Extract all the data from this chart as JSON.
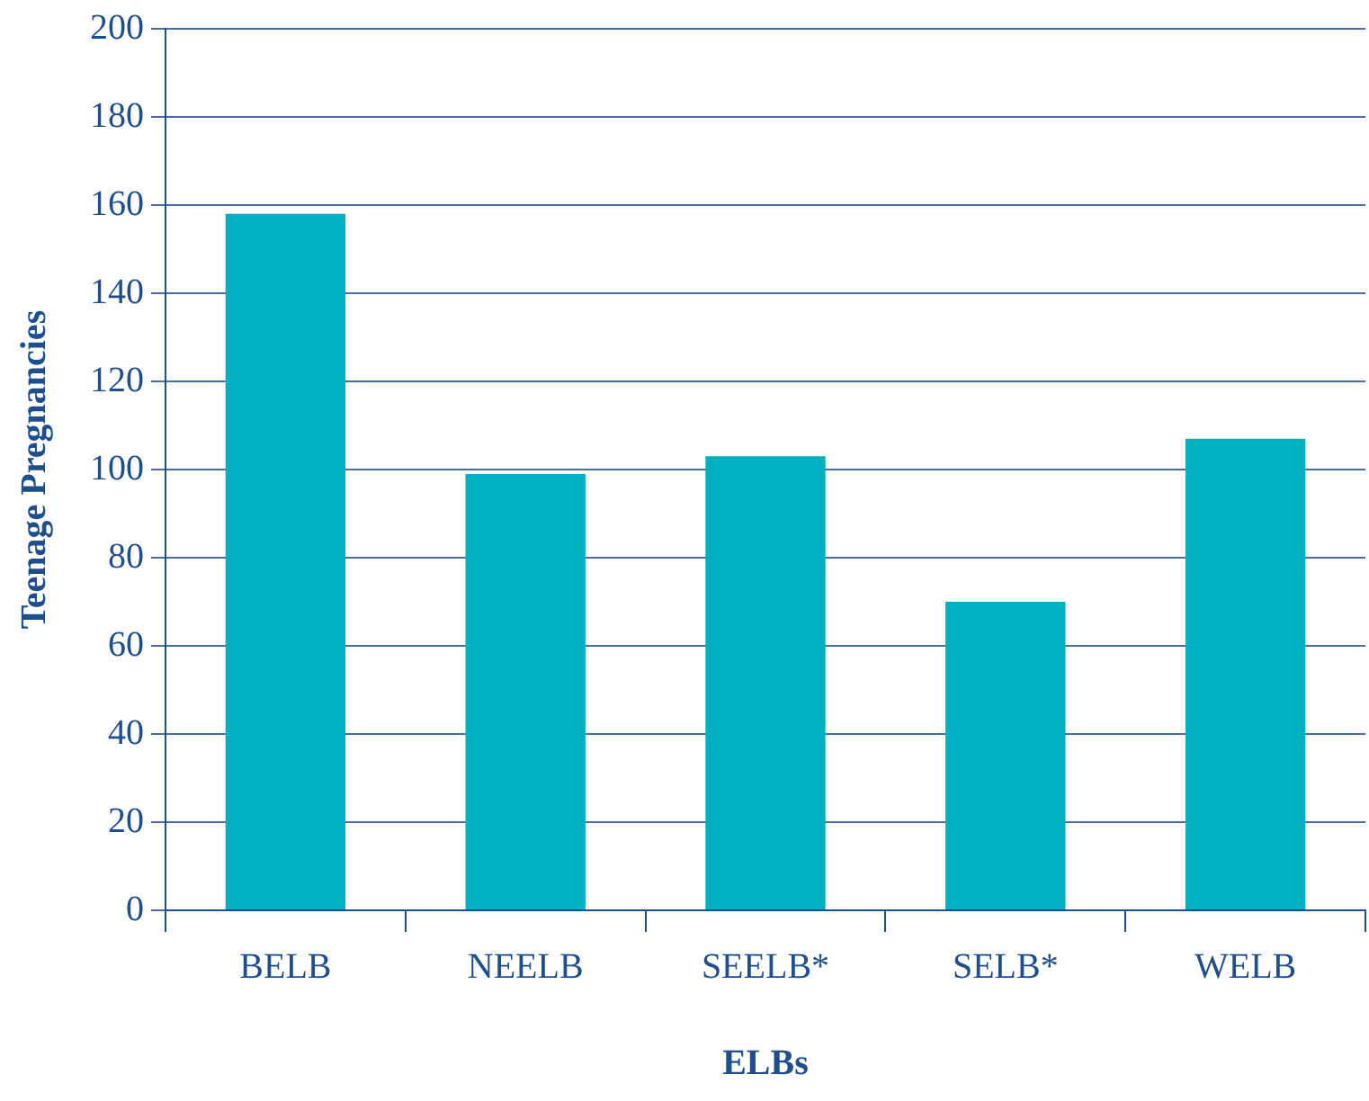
{
  "chart_data": {
    "type": "bar",
    "xlabel": "ELBs",
    "ylabel": "Teenage Pregnancies",
    "categories": [
      "BELB",
      "NEELB",
      "SEELB*",
      "SELB*",
      "WELB"
    ],
    "values": [
      158,
      99,
      103,
      70,
      107
    ],
    "color": "#00afc0",
    "ylim": [
      0,
      200
    ],
    "yticks": [
      0,
      20,
      40,
      60,
      80,
      100,
      120,
      140,
      160,
      180,
      200
    ],
    "grid": "y",
    "legend": false
  }
}
